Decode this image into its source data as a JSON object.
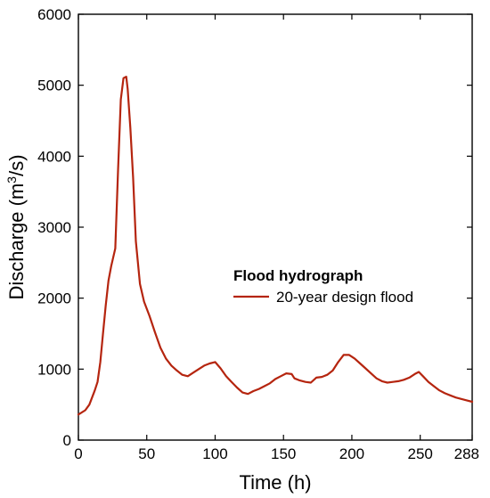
{
  "chart_data": {
    "type": "line",
    "xlabel": "Time (h)",
    "ylabel_main": "Discharge (m",
    "ylabel_sup": "3",
    "ylabel_tail": "/s)",
    "xlim": [
      0,
      288
    ],
    "ylim": [
      0,
      6000
    ],
    "x_ticks": [
      0,
      50,
      100,
      150,
      200,
      250,
      288
    ],
    "y_ticks": [
      0,
      1000,
      2000,
      3000,
      4000,
      5000,
      6000
    ],
    "grid": false,
    "legend": {
      "title": "Flood hydrograph",
      "placement": "center-right"
    },
    "series": [
      {
        "name": "20-year design flood",
        "color": "#b5250f",
        "x": [
          0,
          5,
          8,
          12,
          14,
          16,
          18,
          20,
          22,
          24,
          27,
          29,
          31,
          33,
          35,
          36,
          38,
          40,
          42,
          45,
          48,
          52,
          56,
          60,
          64,
          68,
          72,
          76,
          80,
          84,
          88,
          92,
          96,
          100,
          104,
          108,
          112,
          116,
          120,
          124,
          128,
          132,
          136,
          140,
          144,
          148,
          152,
          156,
          158,
          162,
          166,
          170,
          174,
          178,
          182,
          186,
          190,
          194,
          198,
          202,
          206,
          210,
          214,
          218,
          222,
          226,
          230,
          234,
          238,
          242,
          246,
          249,
          252,
          256,
          260,
          264,
          268,
          272,
          276,
          280,
          284,
          288
        ],
        "y": [
          360,
          420,
          500,
          700,
          820,
          1100,
          1500,
          1900,
          2250,
          2450,
          2700,
          3800,
          4800,
          5100,
          5120,
          4950,
          4400,
          3700,
          2800,
          2200,
          1950,
          1750,
          1520,
          1300,
          1150,
          1050,
          980,
          920,
          900,
          950,
          1000,
          1050,
          1080,
          1100,
          1010,
          900,
          820,
          740,
          670,
          650,
          690,
          720,
          760,
          800,
          860,
          900,
          940,
          930,
          870,
          840,
          820,
          810,
          880,
          890,
          920,
          980,
          1100,
          1200,
          1200,
          1150,
          1080,
          1010,
          940,
          870,
          830,
          810,
          820,
          830,
          850,
          880,
          930,
          960,
          900,
          820,
          760,
          700,
          660,
          630,
          600,
          580,
          560,
          540
        ]
      }
    ]
  }
}
